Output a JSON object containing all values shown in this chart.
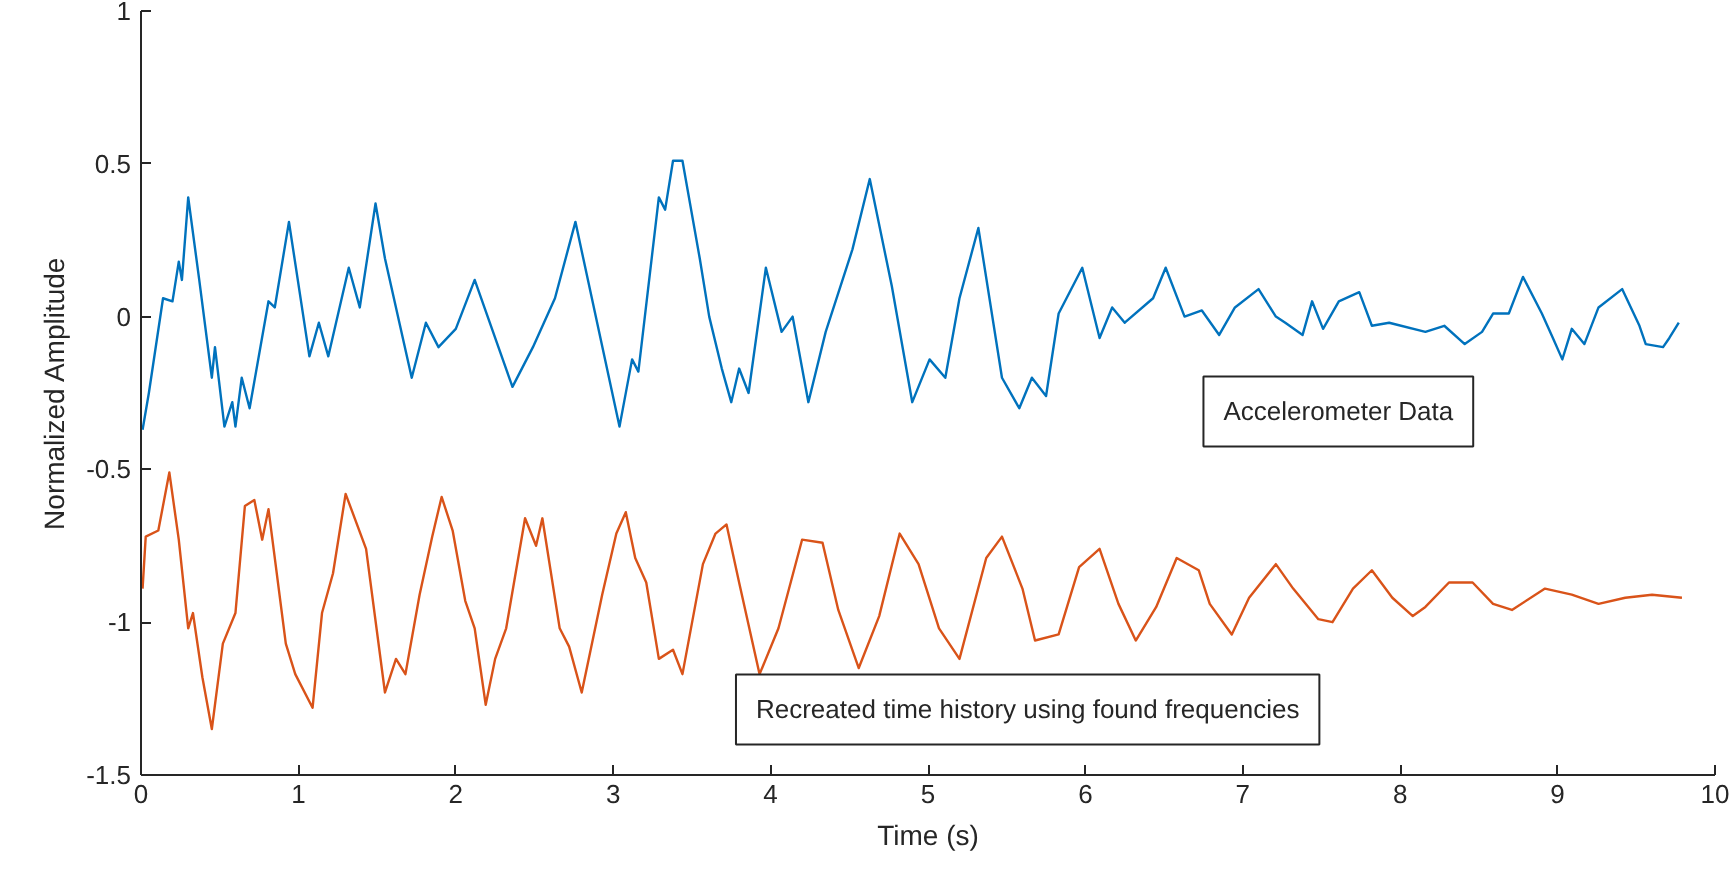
{
  "chart_data": {
    "type": "line",
    "xlabel": "Time (s)",
    "ylabel": "Normalized Amplitude",
    "xlim": [
      0,
      10
    ],
    "ylim": [
      -1.5,
      1
    ],
    "xticks": [
      0,
      1,
      2,
      3,
      4,
      5,
      6,
      7,
      8,
      9,
      10
    ],
    "yticks": [
      -1.5,
      -1,
      -0.5,
      0,
      0.5,
      1
    ],
    "grid": false,
    "legend": false,
    "marker": "none",
    "line_style": "solid",
    "series": [
      {
        "name": "Accelerometer Data",
        "color": "#0072bd",
        "x": [
          0.01,
          0.05,
          0.14,
          0.2,
          0.24,
          0.26,
          0.3,
          0.37,
          0.45,
          0.47,
          0.53,
          0.58,
          0.6,
          0.64,
          0.69,
          0.81,
          0.85,
          0.94,
          1.07,
          1.13,
          1.19,
          1.32,
          1.39,
          1.49,
          1.55,
          1.72,
          1.81,
          1.89,
          2.0,
          2.12,
          2.36,
          2.49,
          2.63,
          2.76,
          3.04,
          3.12,
          3.16,
          3.29,
          3.33,
          3.38,
          3.44,
          3.55,
          3.61,
          3.69,
          3.75,
          3.8,
          3.86,
          3.97,
          4.07,
          4.14,
          4.24,
          4.35,
          4.52,
          4.63,
          4.77,
          4.9,
          5.01,
          5.11,
          5.2,
          5.32,
          5.47,
          5.58,
          5.66,
          5.75,
          5.83,
          5.98,
          6.09,
          6.17,
          6.25,
          6.43,
          6.51,
          6.63,
          6.74,
          6.85,
          6.95,
          7.1,
          7.21,
          7.27,
          7.38,
          7.44,
          7.51,
          7.61,
          7.74,
          7.82,
          7.93,
          8.16,
          8.28,
          8.41,
          8.52,
          8.59,
          8.69,
          8.78,
          8.9,
          8.97,
          9.03,
          9.09,
          9.17,
          9.26,
          9.41,
          9.52,
          9.56,
          9.67,
          9.71,
          9.77
        ],
        "values": [
          -0.37,
          -0.25,
          0.06,
          0.05,
          0.18,
          0.12,
          0.39,
          0.12,
          -0.2,
          -0.1,
          -0.36,
          -0.28,
          -0.36,
          -0.2,
          -0.3,
          0.05,
          0.03,
          0.31,
          -0.13,
          -0.02,
          -0.13,
          0.16,
          0.03,
          0.37,
          0.19,
          -0.2,
          -0.02,
          -0.1,
          -0.04,
          0.12,
          -0.23,
          -0.1,
          0.06,
          0.31,
          -0.36,
          -0.14,
          -0.18,
          0.39,
          0.35,
          0.51,
          0.51,
          0.19,
          0.0,
          -0.17,
          -0.28,
          -0.17,
          -0.25,
          0.16,
          -0.05,
          0.0,
          -0.28,
          -0.05,
          0.22,
          0.45,
          0.1,
          -0.28,
          -0.14,
          -0.2,
          0.06,
          0.29,
          -0.2,
          -0.3,
          -0.2,
          -0.26,
          0.01,
          0.16,
          -0.07,
          0.03,
          -0.02,
          0.06,
          0.16,
          0.0,
          0.02,
          -0.06,
          0.03,
          0.09,
          0.0,
          -0.02,
          -0.06,
          0.05,
          -0.04,
          0.05,
          0.08,
          -0.03,
          -0.02,
          -0.05,
          -0.03,
          -0.09,
          -0.05,
          0.01,
          0.01,
          0.13,
          0.01,
          -0.07,
          -0.14,
          -0.04,
          -0.09,
          0.03,
          0.09,
          -0.03,
          -0.09,
          -0.1,
          -0.07,
          -0.02
        ]
      },
      {
        "name": "Recreated time history using found frequencies",
        "color": "#d95319",
        "x": [
          0.01,
          0.03,
          0.11,
          0.18,
          0.24,
          0.3,
          0.33,
          0.39,
          0.45,
          0.52,
          0.6,
          0.66,
          0.72,
          0.77,
          0.81,
          0.92,
          0.98,
          1.09,
          1.15,
          1.22,
          1.3,
          1.43,
          1.55,
          1.62,
          1.68,
          1.77,
          1.85,
          1.91,
          1.98,
          2.06,
          2.12,
          2.19,
          2.25,
          2.32,
          2.44,
          2.51,
          2.55,
          2.66,
          2.72,
          2.8,
          2.93,
          3.02,
          3.08,
          3.14,
          3.21,
          3.29,
          3.38,
          3.44,
          3.57,
          3.65,
          3.72,
          3.8,
          3.93,
          4.05,
          4.2,
          4.33,
          4.43,
          4.56,
          4.69,
          4.82,
          4.94,
          5.07,
          5.2,
          5.37,
          5.47,
          5.6,
          5.68,
          5.83,
          5.96,
          6.09,
          6.21,
          6.32,
          6.45,
          6.58,
          6.72,
          6.79,
          6.93,
          7.04,
          7.21,
          7.32,
          7.48,
          7.57,
          7.7,
          7.82,
          7.95,
          8.08,
          8.16,
          8.31,
          8.46,
          8.59,
          8.71,
          8.92,
          9.09,
          9.26,
          9.43,
          9.6,
          9.79
        ],
        "values": [
          -0.89,
          -0.72,
          -0.7,
          -0.51,
          -0.73,
          -1.02,
          -0.97,
          -1.18,
          -1.35,
          -1.07,
          -0.97,
          -0.62,
          -0.6,
          -0.73,
          -0.63,
          -1.07,
          -1.17,
          -1.28,
          -0.97,
          -0.84,
          -0.58,
          -0.76,
          -1.23,
          -1.12,
          -1.17,
          -0.91,
          -0.72,
          -0.59,
          -0.7,
          -0.93,
          -1.02,
          -1.27,
          -1.12,
          -1.02,
          -0.66,
          -0.75,
          -0.66,
          -1.02,
          -1.08,
          -1.23,
          -0.91,
          -0.71,
          -0.64,
          -0.79,
          -0.87,
          -1.12,
          -1.09,
          -1.17,
          -0.81,
          -0.71,
          -0.68,
          -0.87,
          -1.17,
          -1.02,
          -0.73,
          -0.74,
          -0.96,
          -1.15,
          -0.98,
          -0.71,
          -0.81,
          -1.02,
          -1.12,
          -0.79,
          -0.72,
          -0.89,
          -1.06,
          -1.04,
          -0.82,
          -0.76,
          -0.94,
          -1.06,
          -0.95,
          -0.79,
          -0.83,
          -0.94,
          -1.04,
          -0.92,
          -0.81,
          -0.89,
          -0.99,
          -1.0,
          -0.89,
          -0.83,
          -0.92,
          -0.98,
          -0.95,
          -0.87,
          -0.87,
          -0.94,
          -0.96,
          -0.89,
          -0.91,
          -0.94,
          -0.92,
          -0.91,
          -0.92
        ]
      }
    ]
  }
}
